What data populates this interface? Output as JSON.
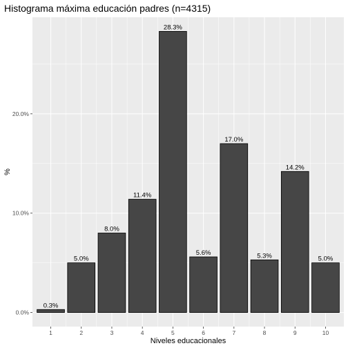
{
  "chart_data": {
    "type": "bar",
    "title": "Histograma máxima educación padres (n=4315)",
    "xlabel": "Niveles educacionales",
    "ylabel": "%",
    "categories": [
      "1",
      "2",
      "3",
      "4",
      "5",
      "6",
      "7",
      "8",
      "9",
      "10"
    ],
    "values": [
      0.3,
      5.0,
      8.0,
      11.4,
      28.3,
      5.6,
      17.0,
      5.3,
      14.2,
      5.0
    ],
    "data_labels": [
      "0.3%",
      "5.0%",
      "8.0%",
      "11.4%",
      "28.3%",
      "5.6%",
      "17.0%",
      "5.3%",
      "14.2%",
      "5.0%"
    ],
    "y_ticks": [
      0,
      10,
      20
    ],
    "y_tick_labels": [
      "0.0%",
      "10.0%",
      "20.0%"
    ],
    "ylim": [
      -1.42,
      29.72
    ],
    "grid": true,
    "legend": "none",
    "colors": {
      "panel": "#ebebeb",
      "grid": "#ffffff",
      "bar_fill": "#464646",
      "bar_stroke": "#000000",
      "tick": "#333333"
    }
  }
}
